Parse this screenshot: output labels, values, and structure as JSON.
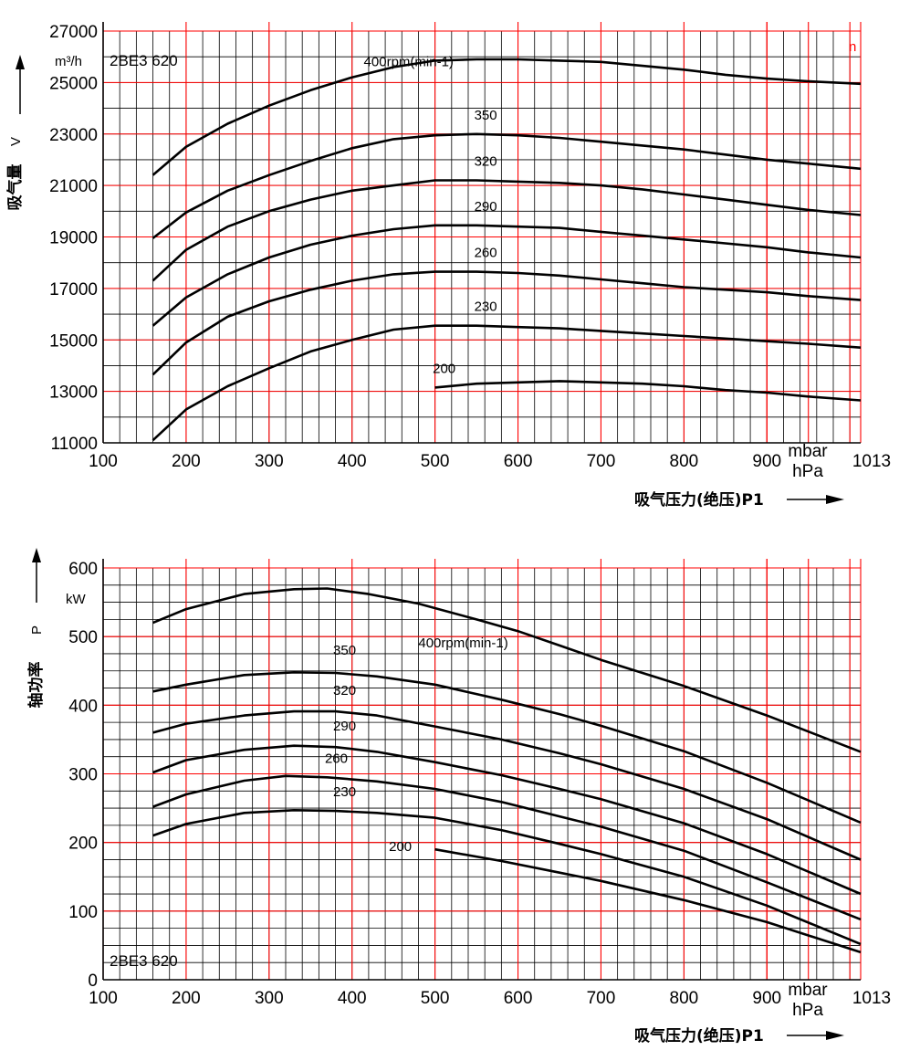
{
  "chart_data": [
    {
      "type": "line",
      "model": "2BE3 620",
      "ylabel": "吸气量",
      "ylabel_symbol": "V",
      "yunit": "m³/h",
      "xlabel": "吸气压力(绝压)P1",
      "xunit_top": "mbar",
      "xunit_bottom": "hPa",
      "corner_mark": "n",
      "xlim": [
        100,
        1013
      ],
      "ylim": [
        11000,
        27000
      ],
      "x_ticks": [
        "100",
        "200",
        "300",
        "400",
        "500",
        "600",
        "700",
        "800",
        "900",
        "1013"
      ],
      "y_ticks": [
        "11000",
        "13000",
        "15000",
        "17000",
        "19000",
        "21000",
        "23000",
        "25000",
        "27000"
      ],
      "colors": {
        "grid": "#ff0000",
        "minor_grid": "#000000",
        "curve": "#000000"
      },
      "series": [
        {
          "name": "400rpm(min-1)",
          "x": [
            160,
            200,
            250,
            300,
            350,
            400,
            450,
            500,
            550,
            600,
            650,
            700,
            750,
            800,
            850,
            900,
            950,
            1013
          ],
          "y": [
            21400,
            22500,
            23400,
            24100,
            24700,
            25200,
            25600,
            25850,
            25900,
            25900,
            25850,
            25800,
            25650,
            25500,
            25300,
            25150,
            25050,
            24950
          ]
        },
        {
          "name": "350",
          "x": [
            160,
            200,
            250,
            300,
            350,
            400,
            450,
            500,
            550,
            600,
            650,
            700,
            750,
            800,
            850,
            900,
            950,
            1013
          ],
          "y": [
            18950,
            19950,
            20800,
            21400,
            21950,
            22450,
            22800,
            22950,
            23000,
            22950,
            22850,
            22700,
            22550,
            22400,
            22200,
            22000,
            21850,
            21650
          ]
        },
        {
          "name": "320",
          "x": [
            160,
            200,
            250,
            300,
            350,
            400,
            450,
            500,
            550,
            600,
            650,
            700,
            750,
            800,
            850,
            900,
            950,
            1013
          ],
          "y": [
            17300,
            18500,
            19400,
            20000,
            20450,
            20800,
            21000,
            21200,
            21200,
            21150,
            21100,
            21000,
            20850,
            20650,
            20450,
            20250,
            20050,
            19850
          ]
        },
        {
          "name": "290",
          "x": [
            160,
            200,
            250,
            300,
            350,
            400,
            450,
            500,
            550,
            600,
            650,
            700,
            750,
            800,
            850,
            900,
            950,
            1013
          ],
          "y": [
            15550,
            16650,
            17550,
            18200,
            18700,
            19050,
            19300,
            19450,
            19450,
            19400,
            19350,
            19200,
            19050,
            18900,
            18750,
            18600,
            18400,
            18200
          ]
        },
        {
          "name": "260",
          "x": [
            160,
            200,
            250,
            300,
            350,
            400,
            450,
            500,
            550,
            600,
            650,
            700,
            750,
            800,
            850,
            900,
            950,
            1013
          ],
          "y": [
            13650,
            14900,
            15900,
            16500,
            16950,
            17300,
            17550,
            17650,
            17650,
            17600,
            17500,
            17350,
            17200,
            17050,
            16950,
            16850,
            16700,
            16550
          ]
        },
        {
          "name": "230",
          "x": [
            160,
            200,
            250,
            300,
            350,
            400,
            450,
            500,
            550,
            600,
            650,
            700,
            750,
            800,
            850,
            900,
            950,
            1013
          ],
          "y": [
            11100,
            12300,
            13200,
            13900,
            14550,
            15000,
            15400,
            15550,
            15550,
            15500,
            15450,
            15350,
            15250,
            15150,
            15050,
            14950,
            14850,
            14700
          ]
        },
        {
          "name": "200",
          "x": [
            500,
            550,
            600,
            650,
            700,
            750,
            800,
            850,
            900,
            950,
            1013
          ],
          "y": [
            13150,
            13300,
            13350,
            13400,
            13350,
            13300,
            13200,
            13050,
            12950,
            12800,
            12650
          ]
        }
      ]
    },
    {
      "type": "line",
      "model": "2BE3 620",
      "ylabel": "轴功率",
      "ylabel_symbol": "P",
      "yunit": "kW",
      "xlabel": "吸气压力(绝压)P1",
      "xunit_top": "mbar",
      "xunit_bottom": "hPa",
      "xlim": [
        100,
        1013
      ],
      "ylim": [
        0,
        600
      ],
      "x_ticks": [
        "100",
        "200",
        "300",
        "400",
        "500",
        "600",
        "700",
        "800",
        "900",
        "1013"
      ],
      "y_ticks": [
        "0",
        "100",
        "200",
        "300",
        "400",
        "500",
        "600"
      ],
      "colors": {
        "grid": "#ff0000",
        "minor_grid": "#000000",
        "curve": "#000000"
      },
      "series": [
        {
          "name": "400rpm(min-1)",
          "x": [
            160,
            200,
            270,
            330,
            370,
            420,
            480,
            550,
            600,
            650,
            700,
            800,
            900,
            1013
          ],
          "y": [
            520,
            540,
            562,
            569,
            570,
            562,
            548,
            525,
            508,
            487,
            466,
            428,
            385,
            332
          ]
        },
        {
          "name": "350",
          "x": [
            160,
            200,
            270,
            330,
            380,
            430,
            500,
            580,
            650,
            700,
            800,
            900,
            1013
          ],
          "y": [
            420,
            430,
            444,
            448,
            447,
            442,
            430,
            408,
            387,
            370,
            333,
            287,
            229
          ]
        },
        {
          "name": "320",
          "x": [
            160,
            200,
            270,
            330,
            380,
            430,
            500,
            580,
            650,
            700,
            800,
            900,
            1013
          ],
          "y": [
            360,
            373,
            385,
            391,
            391,
            385,
            369,
            350,
            330,
            314,
            278,
            234,
            175
          ]
        },
        {
          "name": "290",
          "x": [
            160,
            200,
            270,
            330,
            380,
            430,
            500,
            580,
            650,
            700,
            800,
            900,
            1013
          ],
          "y": [
            302,
            320,
            335,
            341,
            339,
            332,
            317,
            298,
            278,
            263,
            228,
            183,
            125
          ]
        },
        {
          "name": "260",
          "x": [
            160,
            200,
            270,
            320,
            370,
            430,
            500,
            580,
            650,
            700,
            800,
            900,
            1013
          ],
          "y": [
            252,
            270,
            290,
            297,
            295,
            289,
            278,
            259,
            238,
            223,
            188,
            142,
            88
          ]
        },
        {
          "name": "230",
          "x": [
            160,
            200,
            270,
            330,
            380,
            430,
            500,
            580,
            650,
            700,
            800,
            900,
            1013
          ],
          "y": [
            210,
            227,
            243,
            247,
            246,
            243,
            236,
            218,
            198,
            183,
            150,
            108,
            52
          ]
        },
        {
          "name": "200",
          "x": [
            500,
            580,
            650,
            700,
            800,
            900,
            1013
          ],
          "y": [
            190,
            173,
            156,
            144,
            116,
            84,
            40
          ]
        }
      ]
    }
  ]
}
